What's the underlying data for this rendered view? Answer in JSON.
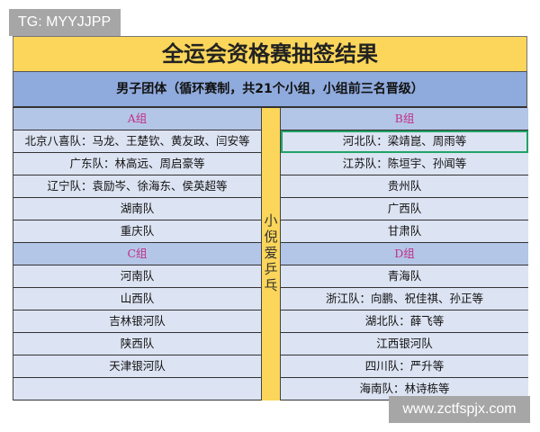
{
  "watermark_top": "TG: MYYJJPP",
  "watermark_bottom": "www.zctfspjx.com",
  "title": "全运会资格赛抽签结果",
  "subtitle": "男子团体（循环赛制，共21个小组，小组前三名晋级）",
  "side_text": [
    "小",
    "倪",
    "爱",
    "乒",
    "乓"
  ],
  "left": {
    "group_a": {
      "label": "A组",
      "teams": [
        "北京八喜队：马龙、王楚钦、黄友政、闫安等",
        "广东队：林高远、周启豪等",
        "辽宁队：袁励岑、徐海东、侯英超等",
        "湖南队",
        "重庆队"
      ]
    },
    "group_c": {
      "label": "C组",
      "teams": [
        "河南队",
        "山西队",
        "吉林银河队",
        "陕西队",
        "天津银河队",
        ""
      ]
    }
  },
  "right": {
    "group_b": {
      "label": "B组",
      "teams": [
        "河北队：梁靖崑、周雨等",
        "江苏队：陈垣宇、孙闻等",
        "贵州队",
        "广西队",
        "甘肃队"
      ]
    },
    "group_d": {
      "label": "D组",
      "teams": [
        "青海队",
        "浙江队：向鹏、祝佳祺、孙正等",
        "湖北队：薛飞等",
        "江西银河队",
        "四川队：严升等",
        "海南队：林诗栋等"
      ]
    }
  },
  "colors": {
    "title_bg": "#fbd65a",
    "subtitle_bg": "#8faadc",
    "header_bg": "#b4c6e7",
    "cell_bg": "#dce3f2",
    "selection": "#21a366"
  }
}
